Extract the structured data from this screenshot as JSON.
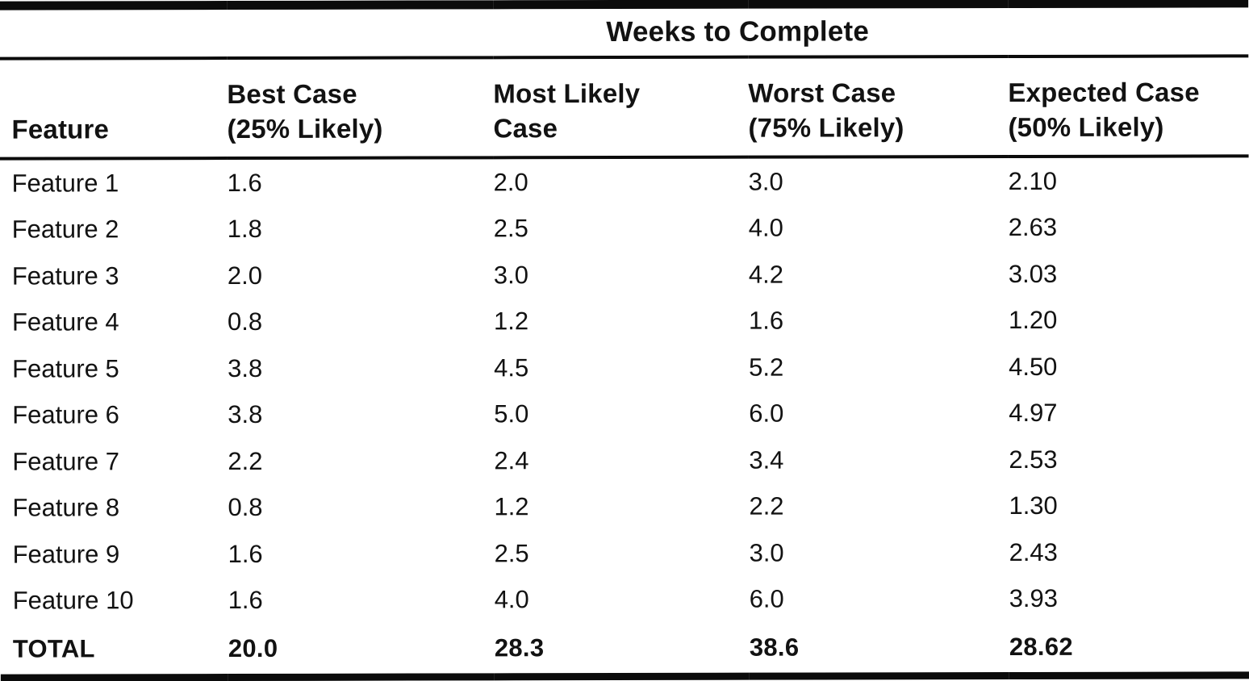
{
  "document": {
    "span_header": "Weeks to Complete",
    "columns": [
      {
        "line1": "Feature",
        "line2": ""
      },
      {
        "line1": "Best Case",
        "line2": "(25% Likely)"
      },
      {
        "line1": "Most Likely",
        "line2": "Case"
      },
      {
        "line1": "Worst Case",
        "line2": "(75% Likely)"
      },
      {
        "line1": "Expected Case",
        "line2": "(50% Likely)"
      }
    ],
    "rows": [
      [
        "Feature 1",
        "1.6",
        "2.0",
        "3.0",
        "2.10"
      ],
      [
        "Feature 2",
        "1.8",
        "2.5",
        "4.0",
        "2.63"
      ],
      [
        "Feature 3",
        "2.0",
        "3.0",
        "4.2",
        "3.03"
      ],
      [
        "Feature 4",
        "0.8",
        "1.2",
        "1.6",
        "1.20"
      ],
      [
        "Feature 5",
        "3.8",
        "4.5",
        "5.2",
        "4.50"
      ],
      [
        "Feature 6",
        "3.8",
        "5.0",
        "6.0",
        "4.97"
      ],
      [
        "Feature 7",
        "2.2",
        "2.4",
        "3.4",
        "2.53"
      ],
      [
        "Feature 8",
        "0.8",
        "1.2",
        "2.2",
        "1.30"
      ],
      [
        "Feature 9",
        "1.6",
        "2.5",
        "3.0",
        "2.43"
      ],
      [
        "Feature 10",
        "1.6",
        "4.0",
        "6.0",
        "3.93"
      ]
    ],
    "total_row": [
      "TOTAL",
      "20.0",
      "28.3",
      "38.6",
      "28.62"
    ],
    "colors": {
      "text": "#121212",
      "rule": "#0b0b0b",
      "background": "#ffffff"
    }
  }
}
